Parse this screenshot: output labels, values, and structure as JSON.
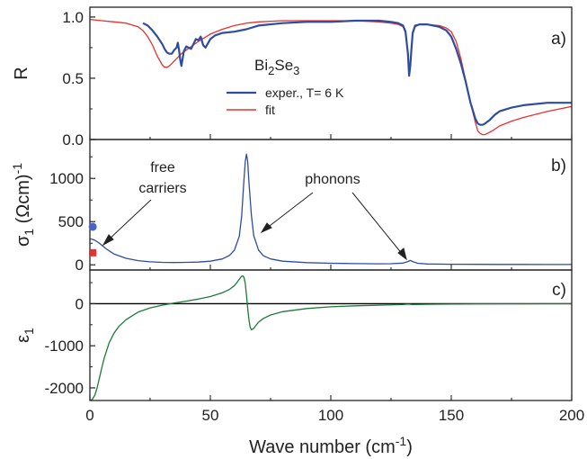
{
  "chart_data": [
    {
      "type": "line",
      "panel_label": "a)",
      "ylabel": "R",
      "ylim": [
        0.0,
        1.08
      ],
      "xlim": [
        0,
        200
      ],
      "yticks": [
        "0.0",
        "0.5",
        "1.0"
      ],
      "material": {
        "base1": "Bi",
        "sub1": "2",
        "base2": "Se",
        "sub2": "3"
      },
      "legend_location": "center",
      "series": [
        {
          "name": "exper., T= 6 K",
          "color": "#2E4DA0",
          "x": [
            22,
            24,
            26,
            28,
            30,
            31,
            32,
            33,
            34,
            35,
            36,
            36.5,
            37,
            37.5,
            38,
            39,
            40,
            42,
            44,
            45,
            46,
            47,
            48,
            50,
            52,
            55,
            60,
            65,
            70,
            80,
            90,
            100,
            110,
            120,
            125,
            128,
            130,
            131,
            132,
            132.5,
            133,
            133.5,
            134,
            135,
            137,
            140,
            145,
            148,
            150,
            152,
            154,
            156,
            158,
            160,
            161,
            162,
            163,
            164,
            166,
            168,
            170,
            175,
            180,
            190,
            200
          ],
          "y": [
            0.95,
            0.93,
            0.89,
            0.84,
            0.78,
            0.74,
            0.71,
            0.7,
            0.7,
            0.73,
            0.75,
            0.79,
            0.73,
            0.65,
            0.6,
            0.72,
            0.76,
            0.74,
            0.82,
            0.81,
            0.84,
            0.77,
            0.75,
            0.82,
            0.85,
            0.87,
            0.88,
            0.9,
            0.93,
            0.95,
            0.96,
            0.96,
            0.97,
            0.97,
            0.96,
            0.95,
            0.93,
            0.88,
            0.7,
            0.52,
            0.6,
            0.75,
            0.87,
            0.93,
            0.94,
            0.94,
            0.92,
            0.89,
            0.84,
            0.74,
            0.62,
            0.47,
            0.3,
            0.17,
            0.13,
            0.12,
            0.12,
            0.13,
            0.16,
            0.2,
            0.23,
            0.26,
            0.28,
            0.3,
            0.3
          ]
        },
        {
          "name": "fit",
          "color": "#E8302F",
          "x": [
            0,
            5,
            10,
            15,
            20,
            22,
            24,
            26,
            28,
            30,
            31,
            32,
            33,
            35,
            38,
            40,
            45,
            50,
            55,
            60,
            65,
            70,
            80,
            90,
            100,
            110,
            120,
            125,
            128,
            130,
            131,
            132,
            132.5,
            133,
            133.5,
            134,
            135,
            137,
            140,
            145,
            148,
            150,
            152,
            154,
            156,
            158,
            160,
            161,
            162,
            163,
            164,
            165,
            167,
            170,
            175,
            180,
            190,
            200
          ],
          "y": [
            0.98,
            0.97,
            0.96,
            0.95,
            0.92,
            0.89,
            0.84,
            0.77,
            0.68,
            0.61,
            0.59,
            0.59,
            0.6,
            0.64,
            0.7,
            0.73,
            0.8,
            0.86,
            0.9,
            0.93,
            0.95,
            0.96,
            0.97,
            0.97,
            0.97,
            0.97,
            0.96,
            0.95,
            0.94,
            0.92,
            0.87,
            0.7,
            0.52,
            0.59,
            0.75,
            0.86,
            0.92,
            0.94,
            0.94,
            0.93,
            0.91,
            0.88,
            0.8,
            0.66,
            0.48,
            0.3,
            0.14,
            0.07,
            0.05,
            0.04,
            0.04,
            0.05,
            0.07,
            0.11,
            0.15,
            0.18,
            0.23,
            0.27
          ]
        }
      ]
    },
    {
      "type": "line",
      "panel_label": "b)",
      "ylabel": "σ1 (Ωcm)-1",
      "ylabel_parts": {
        "base": "σ",
        "sub": "1",
        "unit": " (Ωcm)",
        "sup": "-1"
      },
      "ylim": [
        -60,
        1450
      ],
      "xlim": [
        0,
        200
      ],
      "yticks": [
        "0",
        "500",
        "1000"
      ],
      "annotations": [
        "free",
        "carriers",
        "phonons"
      ],
      "series": [
        {
          "name": "σ1",
          "color": "#2E4DA0",
          "x": [
            0,
            1,
            2,
            3,
            4,
            5,
            7,
            10,
            15,
            20,
            25,
            30,
            35,
            40,
            45,
            50,
            55,
            58,
            60,
            62,
            63,
            64,
            64.5,
            65,
            65.5,
            66,
            67,
            68,
            70,
            72,
            75,
            80,
            90,
            100,
            110,
            120,
            125,
            130,
            132,
            133,
            134,
            136,
            140,
            150,
            160,
            170,
            180,
            190,
            200
          ],
          "y": [
            300,
            295,
            285,
            268,
            248,
            225,
            180,
            125,
            75,
            48,
            35,
            28,
            26,
            28,
            32,
            42,
            68,
            110,
            170,
            330,
            560,
            1000,
            1200,
            1280,
            1200,
            960,
            580,
            340,
            170,
            105,
            68,
            42,
            25,
            18,
            14,
            12,
            13,
            20,
            38,
            50,
            38,
            18,
            10,
            7,
            6,
            5,
            5,
            4,
            4
          ]
        }
      ],
      "markers": [
        {
          "name": "dc-blue",
          "color": "#4A63C8",
          "shape": "circle",
          "x": 0.8,
          "y": 440
        },
        {
          "name": "dc-red",
          "color": "#E8302F",
          "shape": "square",
          "x": 0.8,
          "y": 140
        }
      ]
    },
    {
      "type": "line",
      "panel_label": "c)",
      "ylabel": "ε1",
      "ylabel_parts": {
        "base": "ε",
        "sub": "1"
      },
      "ylim": [
        -2300,
        800
      ],
      "xlim": [
        0,
        200
      ],
      "yticks": [
        "-2000",
        "-1000",
        "0"
      ],
      "xticks": [
        "0",
        "50",
        "100",
        "150",
        "200"
      ],
      "xlabel": "Wave number (cm-1)",
      "xlabel_parts": {
        "pre": "Wave number (cm",
        "sup": "-1",
        "post": ")"
      },
      "reference_line": {
        "y": 0,
        "color": "#000000"
      },
      "series": [
        {
          "name": "ε1",
          "color": "#1F7A3A",
          "x": [
            0,
            0.5,
            1,
            2,
            3,
            4,
            5,
            6,
            8,
            10,
            12,
            15,
            20,
            25,
            30,
            35,
            40,
            45,
            50,
            55,
            58,
            60,
            61,
            62,
            63,
            63.5,
            64,
            64.5,
            65,
            65.5,
            66,
            66.5,
            67,
            68,
            69,
            70,
            72,
            75,
            80,
            90,
            100,
            110,
            120,
            130,
            132,
            133,
            134,
            140,
            150,
            160,
            170,
            180,
            190,
            200
          ],
          "y": [
            -2290,
            -2290,
            -2270,
            -2180,
            -2000,
            -1760,
            -1510,
            -1280,
            -930,
            -700,
            -540,
            -380,
            -200,
            -100,
            -35,
            15,
            60,
            110,
            170,
            260,
            340,
            430,
            500,
            580,
            650,
            660,
            620,
            470,
            200,
            -100,
            -380,
            -550,
            -620,
            -590,
            -510,
            -440,
            -350,
            -270,
            -190,
            -115,
            -75,
            -50,
            -35,
            -20,
            -10,
            -15,
            -22,
            -15,
            -10,
            -6,
            -4,
            -3,
            -2,
            -1
          ]
        }
      ]
    }
  ]
}
